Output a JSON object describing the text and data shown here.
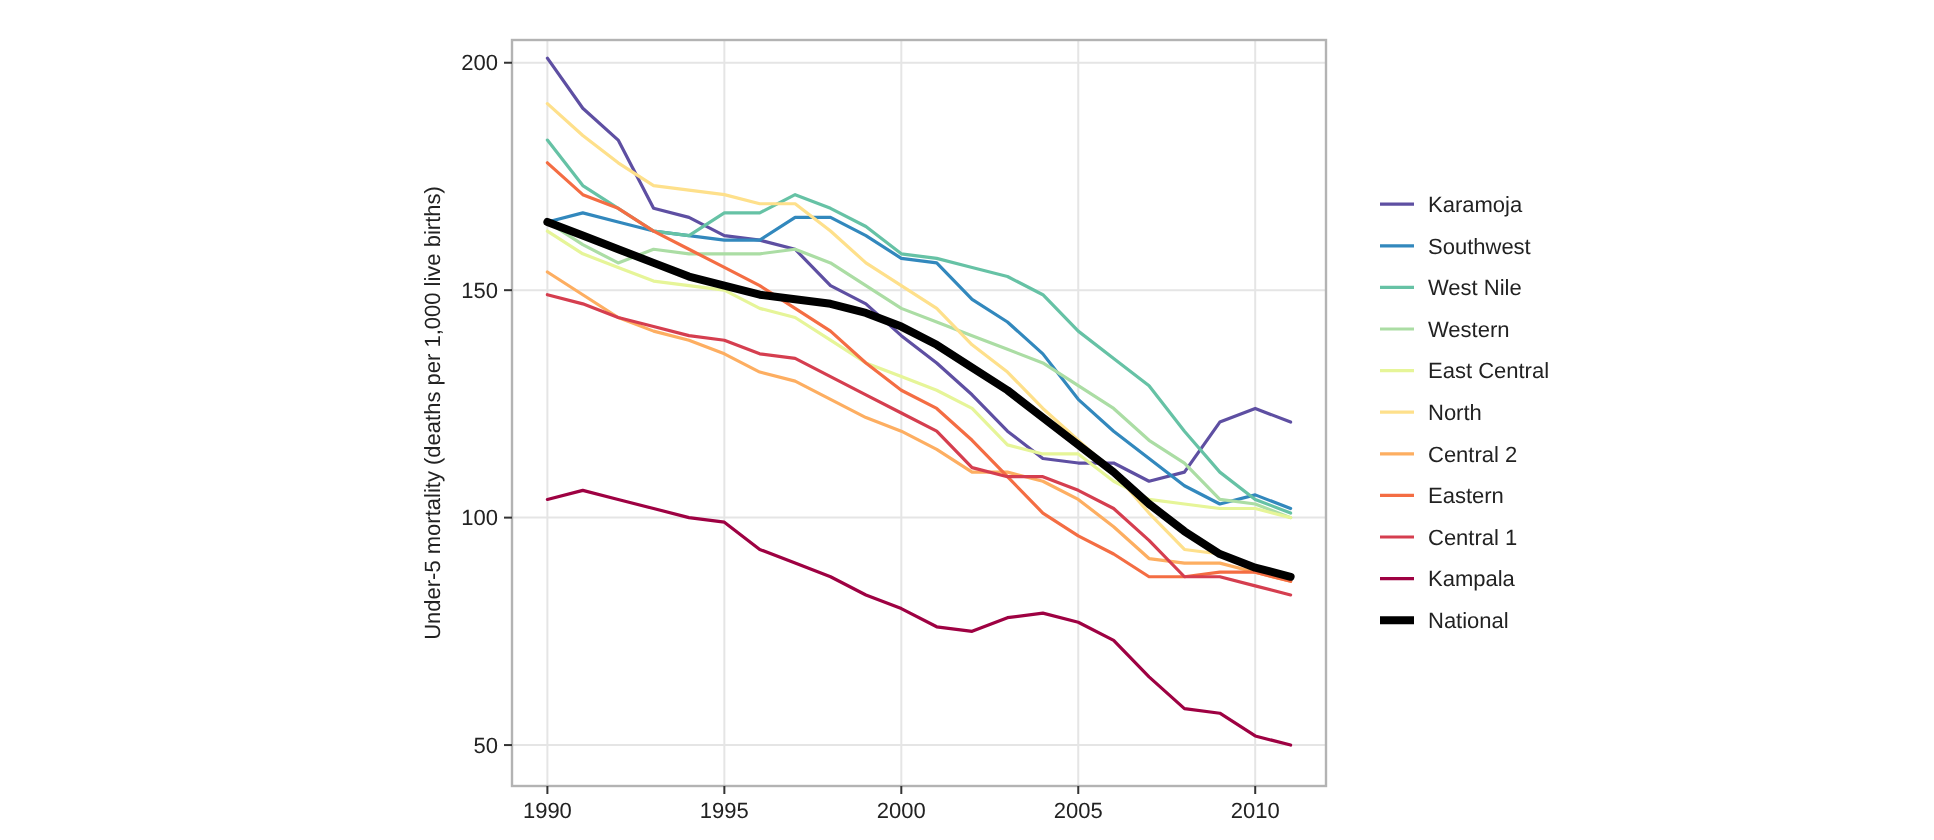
{
  "chart_data": {
    "type": "line",
    "ylabel": "Under-5 mortality (deaths per 1,000 live births)",
    "x": [
      1990,
      1991,
      1992,
      1993,
      1994,
      1995,
      1996,
      1997,
      1998,
      1999,
      2000,
      2001,
      2002,
      2003,
      2004,
      2005,
      2006,
      2007,
      2008,
      2009,
      2010,
      2011
    ],
    "xlim": [
      1989,
      2012
    ],
    "xticks": [
      1990,
      1995,
      2000,
      2005,
      2010
    ],
    "ylim": [
      41,
      205
    ],
    "yticks": [
      50,
      100,
      150,
      200
    ],
    "grid": true,
    "legend": "right",
    "line_style": "solid",
    "marker": "none",
    "series": [
      {
        "name": "Karamoja",
        "color": "#5e4fa2",
        "values": [
          201,
          190,
          183,
          168,
          166,
          162,
          161,
          159,
          151,
          147,
          140,
          134,
          127,
          119,
          113,
          112,
          112,
          108,
          110,
          121,
          124,
          121
        ]
      },
      {
        "name": "Southwest",
        "color": "#3288bd",
        "values": [
          165,
          167,
          165,
          163,
          162,
          161,
          161,
          166,
          166,
          162,
          157,
          156,
          148,
          143,
          136,
          126,
          119,
          113,
          107,
          103,
          105,
          102
        ]
      },
      {
        "name": "West Nile",
        "color": "#66c2a5",
        "values": [
          183,
          173,
          168,
          163,
          162,
          167,
          167,
          171,
          168,
          164,
          158,
          157,
          155,
          153,
          149,
          141,
          135,
          129,
          119,
          110,
          104,
          101
        ]
      },
      {
        "name": "Western",
        "color": "#abdda4",
        "values": [
          165,
          160,
          156,
          159,
          158,
          158,
          158,
          159,
          156,
          151,
          146,
          143,
          140,
          137,
          134,
          129,
          124,
          117,
          112,
          104,
          103,
          100
        ]
      },
      {
        "name": "East Central",
        "color": "#e6f598",
        "values": [
          163,
          158,
          155,
          152,
          151,
          150,
          146,
          144,
          139,
          134,
          131,
          128,
          124,
          116,
          114,
          114,
          108,
          104,
          103,
          102,
          102,
          100
        ]
      },
      {
        "name": "North",
        "color": "#fee08b",
        "values": [
          191,
          184,
          178,
          173,
          172,
          171,
          169,
          169,
          163,
          156,
          151,
          146,
          138,
          132,
          124,
          117,
          110,
          101,
          93,
          92,
          89,
          87
        ]
      },
      {
        "name": "Central 2",
        "color": "#fdae61",
        "values": [
          154,
          149,
          144,
          141,
          139,
          136,
          132,
          130,
          126,
          122,
          119,
          115,
          110,
          110,
          108,
          104,
          98,
          91,
          90,
          90,
          88,
          86
        ]
      },
      {
        "name": "Eastern",
        "color": "#f46d43",
        "values": [
          178,
          171,
          168,
          163,
          159,
          155,
          151,
          146,
          141,
          134,
          128,
          124,
          117,
          109,
          101,
          96,
          92,
          87,
          87,
          88,
          88,
          86
        ]
      },
      {
        "name": "Central 1",
        "color": "#d53e4f",
        "values": [
          149,
          147,
          144,
          142,
          140,
          139,
          136,
          135,
          131,
          127,
          123,
          119,
          111,
          109,
          109,
          106,
          102,
          95,
          87,
          87,
          85,
          83
        ]
      },
      {
        "name": "Kampala",
        "color": "#9e0142",
        "values": [
          104,
          106,
          104,
          102,
          100,
          99,
          93,
          90,
          87,
          83,
          80,
          76,
          75,
          78,
          79,
          77,
          73,
          65,
          58,
          57,
          52,
          50
        ]
      },
      {
        "name": "National",
        "color": "#000000",
        "values": [
          165,
          162,
          159,
          156,
          153,
          151,
          149,
          148,
          147,
          145,
          142,
          138,
          133,
          128,
          122,
          116,
          110,
          103,
          97,
          92,
          89,
          87
        ]
      }
    ]
  }
}
